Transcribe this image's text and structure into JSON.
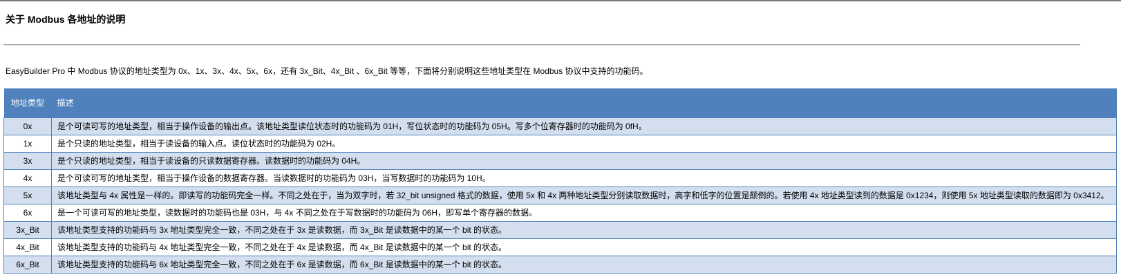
{
  "title": "关于 Modbus 各地址的说明",
  "intro": "EasyBuilder Pro 中 Modbus 协议的地址类型为 0x、1x、3x、4x、5x、6x，还有 3x_Bit、4x_Bit 、6x_Bit 等等，下面将分别说明这些地址类型在 Modbus 协议中支持的功能码。",
  "table": {
    "headers": [
      "地址类型",
      "描述"
    ],
    "rows": [
      {
        "type": "0x",
        "desc": "是个可读可写的地址类型，相当于操作设备的输出点。该地址类型读位状态时的功能码为 01H，写位状态时的功能码为 05H。写多个位寄存器时的功能码为 0fH。"
      },
      {
        "type": "1x",
        "desc": "是个只读的地址类型，相当于读设备的输入点。读位状态时的功能码为 02H。"
      },
      {
        "type": "3x",
        "desc": "是个只读的地址类型，相当于读设备的只读数据寄存器。读数据时的功能码为 04H。"
      },
      {
        "type": "4x",
        "desc": "是个可读可写的地址类型，相当于操作设备的数据寄存器。当读数据时的功能码为 03H，当写数据时的功能码为 10H。"
      },
      {
        "type": "5x",
        "desc": "该地址类型与 4x 属性是一样的。即读写的功能码完全一样。不同之处在于，当为双字时，若 32_bit unsigned 格式的数据，使用 5x 和 4x 两种地址类型分别读取数据时，高字和低字的位置是颠倒的。若使用 4x 地址类型读到的数据是 0x1234，则使用 5x 地址类型读取的数据即为 0x3412。"
      },
      {
        "type": "6x",
        "desc": "是一个可读可写的地址类型，读数据时的功能码也是 03H，与 4x 不同之处在于写数据时的功能码为 06H，即写单个寄存器的数据。"
      },
      {
        "type": "3x_Bit",
        "desc": "该地址类型支持的功能码与 3x 地址类型完全一致，不同之处在于 3x 是读数据，而 3x_Bit 是读数据中的某一个 bit 的状态。"
      },
      {
        "type": "4x_Bit",
        "desc": "该地址类型支持的功能码与 4x 地址类型完全一致，不同之处在于 4x 是读数据，而 4x_Bit 是读数据中的某一个 bit 的状态。"
      },
      {
        "type": "6x_Bit",
        "desc": "该地址类型支持的功能码与 6x 地址类型完全一致，不同之处在于 6x 是读数据，而 6x_Bit 是读数据中的某一个 bit 的状态。"
      }
    ]
  },
  "colors": {
    "header_bg": "#4f81bd",
    "row_alt_bg": "#d3dfee"
  }
}
